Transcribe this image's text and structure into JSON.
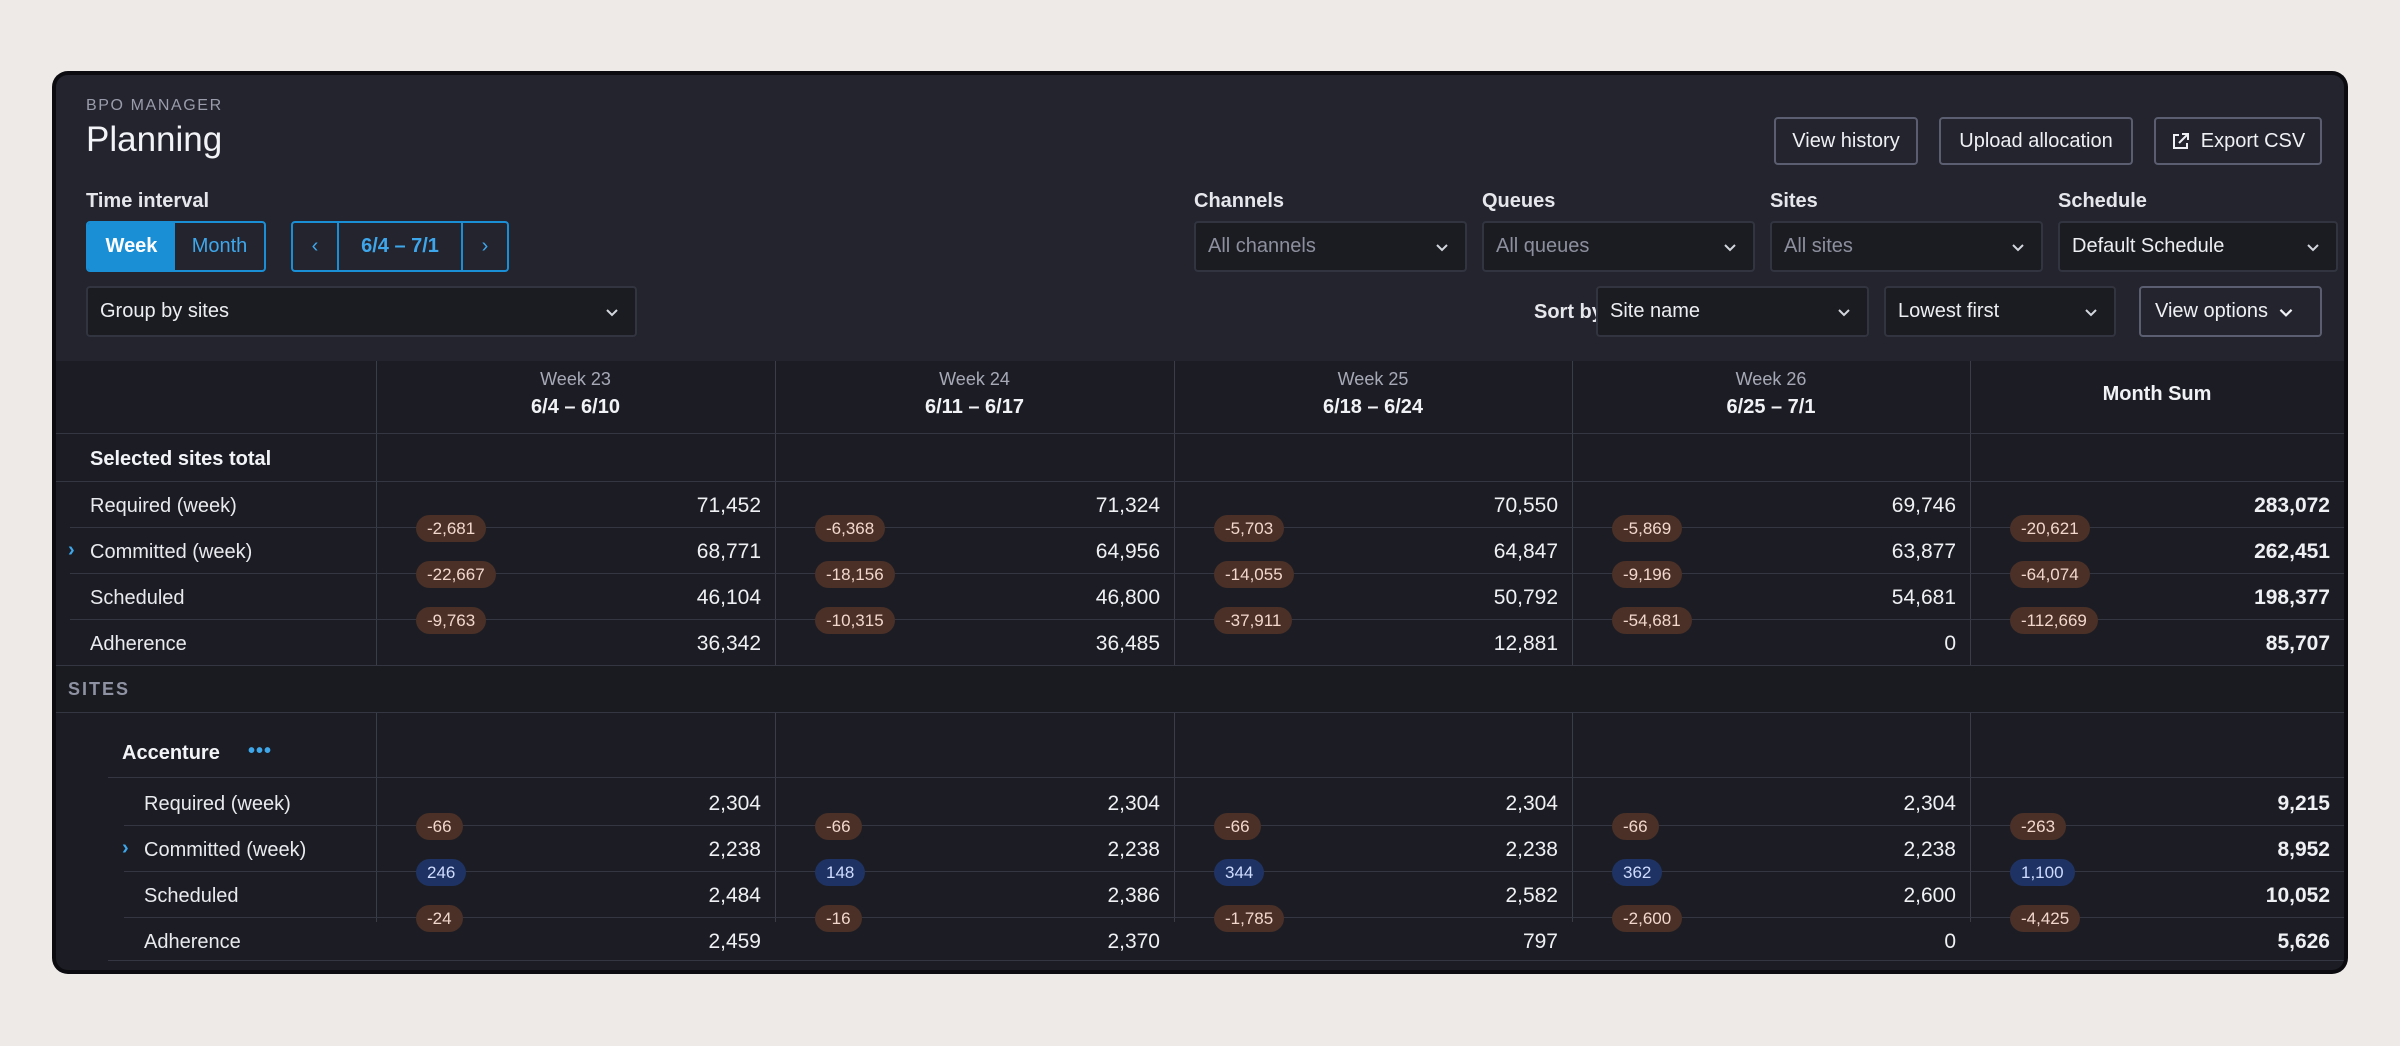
{
  "app": {
    "eyebrow": "BPO MANAGER",
    "title": "Planning"
  },
  "actions": {
    "view_history": "View history",
    "upload_allocation": "Upload allocation",
    "export_csv": "Export CSV"
  },
  "filters": {
    "time_interval_label": "Time interval",
    "week": "Week",
    "month": "Month",
    "range": "6/4 – 7/1",
    "group_by": "Group by sites",
    "channels_label": "Channels",
    "channels_value": "All channels",
    "queues_label": "Queues",
    "queues_value": "All queues",
    "sites_label": "Sites",
    "sites_value": "All sites",
    "schedule_label": "Schedule",
    "schedule_value": "Default Schedule",
    "sort_by_label": "Sort by",
    "sort_field": "Site name",
    "sort_order": "Lowest first",
    "view_options": "View options"
  },
  "columns": [
    {
      "week": "Week 23",
      "dates": "6/4 – 6/10"
    },
    {
      "week": "Week 24",
      "dates": "6/11 – 6/17"
    },
    {
      "week": "Week 25",
      "dates": "6/18 – 6/24"
    },
    {
      "week": "Week 26",
      "dates": "6/25 – 7/1"
    },
    {
      "week": "",
      "dates": "Month Sum"
    }
  ],
  "total": {
    "title": "Selected sites total",
    "rows": [
      {
        "label": "Required (week)",
        "values": [
          "71,452",
          "71,324",
          "70,550",
          "69,746",
          "283,072"
        ]
      },
      {
        "label": "Committed (week)",
        "values": [
          "68,771",
          "64,956",
          "64,847",
          "63,877",
          "262,451"
        ]
      },
      {
        "label": "Scheduled",
        "values": [
          "46,104",
          "46,800",
          "50,792",
          "54,681",
          "198,377"
        ]
      },
      {
        "label": "Adherence",
        "values": [
          "36,342",
          "36,485",
          "12,881",
          "0",
          "85,707"
        ]
      }
    ],
    "deltas": [
      [
        "-2,681",
        "-6,368",
        "-5,703",
        "-5,869",
        "-20,621"
      ],
      [
        "-22,667",
        "-18,156",
        "-14,055",
        "-9,196",
        "-64,074"
      ],
      [
        "-9,763",
        "-10,315",
        "-37,911",
        "-54,681",
        "-112,669"
      ]
    ]
  },
  "sites_heading": "SITES",
  "site": {
    "name": "Accenture",
    "more": "•••",
    "rows": [
      {
        "label": "Required (week)",
        "values": [
          "2,304",
          "2,304",
          "2,304",
          "2,304",
          "9,215"
        ]
      },
      {
        "label": "Committed (week)",
        "values": [
          "2,238",
          "2,238",
          "2,238",
          "2,238",
          "8,952"
        ]
      },
      {
        "label": "Scheduled",
        "values": [
          "2,484",
          "2,386",
          "2,582",
          "2,600",
          "10,052"
        ]
      },
      {
        "label": "Adherence",
        "values": [
          "2,459",
          "2,370",
          "797",
          "0",
          "5,626"
        ]
      }
    ],
    "deltas": [
      [
        "-66",
        "-66",
        "-66",
        "-66",
        "-263"
      ],
      [
        "246",
        "148",
        "344",
        "362",
        "1,100"
      ],
      [
        "-24",
        "-16",
        "-1,785",
        "-2,600",
        "-4,425"
      ]
    ],
    "delta_kinds": [
      "neg",
      "pos",
      "neg"
    ]
  },
  "colors": {
    "accent": "#1a8fd6",
    "negative_pill": "#4a3027",
    "positive_pill": "#1e3263"
  }
}
